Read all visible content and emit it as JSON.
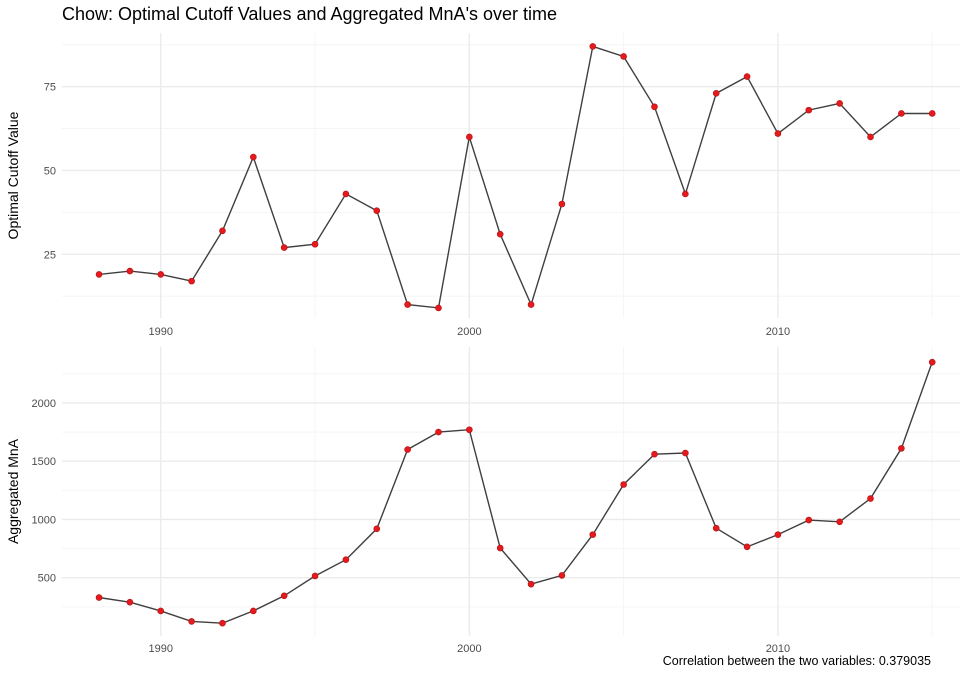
{
  "title": "Chow: Optimal Cutoff Values and Aggregated MnA's over time",
  "caption": "Correlation between the two variables: 0.379035",
  "colors": {
    "line": "#3f3f3f",
    "point": "#e41a1c",
    "grid_major": "#ebebeb",
    "grid_minor": "#f5f5f5"
  },
  "chart_data": [
    {
      "type": "line",
      "ylabel": "Optimal Cutoff Value",
      "xlabel": "",
      "grid": true,
      "xlim": [
        1986.8,
        2015.9
      ],
      "ylim": [
        6,
        91
      ],
      "xticks": [
        1990,
        2000,
        2010
      ],
      "yticks": [
        25,
        50,
        75
      ],
      "x": [
        1988,
        1989,
        1990,
        1991,
        1992,
        1993,
        1994,
        1995,
        1996,
        1997,
        1998,
        1999,
        2000,
        2001,
        2002,
        2003,
        2004,
        2005,
        2006,
        2007,
        2008,
        2009,
        2010,
        2011,
        2012,
        2013,
        2014,
        2015
      ],
      "y": [
        19,
        20,
        19,
        17,
        32,
        54,
        27,
        28,
        43,
        38,
        10,
        9,
        60,
        31,
        10,
        40,
        87,
        84,
        69,
        43,
        73,
        78,
        61,
        68,
        70,
        60,
        67,
        67
      ]
    },
    {
      "type": "line",
      "ylabel": "Aggregated MnA",
      "xlabel": "",
      "grid": true,
      "xlim": [
        1986.8,
        2015.9
      ],
      "ylim": [
        0,
        2480
      ],
      "xticks": [
        1990,
        2000,
        2010
      ],
      "yticks": [
        500,
        1000,
        1500,
        2000
      ],
      "x": [
        1988,
        1989,
        1990,
        1991,
        1992,
        1993,
        1994,
        1995,
        1996,
        1997,
        1998,
        1999,
        2000,
        2001,
        2002,
        2003,
        2004,
        2005,
        2006,
        2007,
        2008,
        2009,
        2010,
        2011,
        2012,
        2013,
        2014,
        2015
      ],
      "y": [
        330,
        290,
        215,
        125,
        110,
        215,
        345,
        515,
        655,
        920,
        1600,
        1750,
        1770,
        755,
        445,
        520,
        870,
        1300,
        1560,
        1570,
        925,
        765,
        870,
        995,
        980,
        1180,
        1610,
        2350
      ]
    }
  ]
}
